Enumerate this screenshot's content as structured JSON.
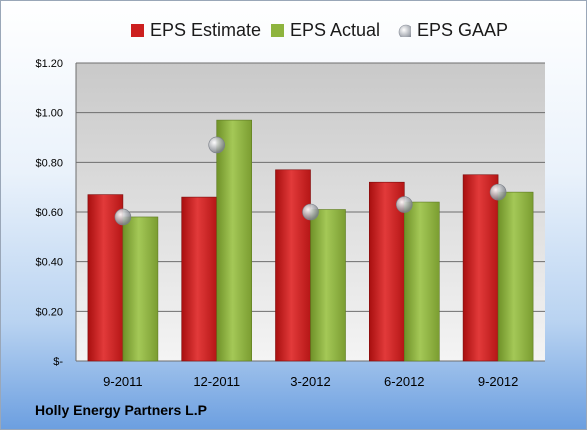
{
  "company_name": "Holly Energy Partners L.P",
  "colors": {
    "estimate": "#cc1f1f",
    "actual": "#8eb43e",
    "gaap": "#b3b8c0"
  },
  "chart_data": {
    "type": "bar",
    "categories": [
      "9-2011",
      "12-2011",
      "3-2012",
      "6-2012",
      "9-2012"
    ],
    "series": [
      {
        "name": "EPS Estimate",
        "kind": "bar",
        "values": [
          0.67,
          0.66,
          0.77,
          0.72,
          0.75
        ]
      },
      {
        "name": "EPS Actual",
        "kind": "bar",
        "values": [
          0.58,
          0.97,
          0.61,
          0.64,
          0.68
        ]
      },
      {
        "name": "EPS GAAP",
        "kind": "marker",
        "values": [
          0.58,
          0.87,
          0.6,
          0.63,
          0.68
        ]
      }
    ],
    "yticks": [
      0,
      0.2,
      0.4,
      0.6,
      0.8,
      1.0,
      1.2
    ],
    "ytick_labels": [
      "$-",
      "$0.20",
      "$0.40",
      "$0.60",
      "$0.80",
      "$1.00",
      "$1.20"
    ],
    "ylim": [
      0,
      1.2
    ],
    "grid": true,
    "legend_position": "top"
  }
}
